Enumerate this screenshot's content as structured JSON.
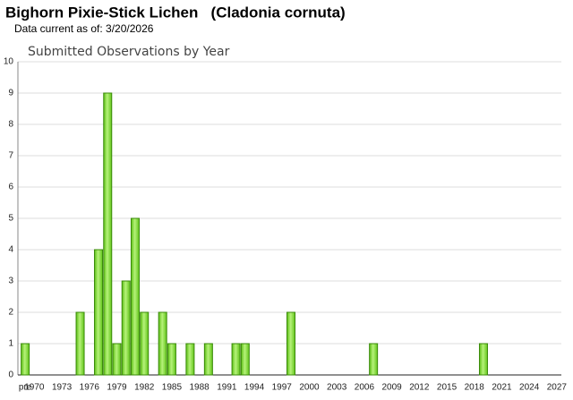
{
  "chart_data": {
    "type": "bar",
    "title": "Bighorn Pixie-Stick Lichen   (Cladonia cornuta)",
    "subtitle": "Data current as of: 3/20/2026",
    "chart_title": "Submitted Observations by Year",
    "categories": [
      "pre",
      "1970",
      null,
      null,
      "1973",
      null,
      null,
      "1976",
      null,
      null,
      "1979",
      null,
      null,
      "1982",
      null,
      null,
      "1985",
      null,
      null,
      "1988",
      null,
      null,
      "1991",
      null,
      null,
      "1994",
      null,
      null,
      "1997",
      null,
      null,
      "2000",
      null,
      null,
      "2003",
      null,
      null,
      "2006",
      null,
      null,
      "2009",
      null,
      null,
      "2012",
      null,
      null,
      "2015",
      null,
      null,
      "2018",
      null,
      null,
      "2021",
      null,
      null,
      "2024",
      null,
      null,
      "2027"
    ],
    "values": [
      1,
      0,
      0,
      0,
      0,
      0,
      2,
      0,
      4,
      9,
      1,
      3,
      5,
      2,
      0,
      2,
      1,
      0,
      1,
      0,
      1,
      0,
      0,
      1,
      1,
      0,
      0,
      0,
      0,
      2,
      0,
      0,
      0,
      0,
      0,
      0,
      0,
      0,
      1,
      0,
      0,
      0,
      0,
      0,
      0,
      0,
      0,
      0,
      0,
      0,
      1,
      0,
      0,
      0,
      0,
      0,
      0,
      0,
      0
    ],
    "color": "#7ed82a",
    "ylim": [
      0,
      10
    ],
    "yticks": [
      0,
      1,
      2,
      3,
      4,
      5,
      6,
      7,
      8,
      9,
      10
    ],
    "grid": true
  }
}
